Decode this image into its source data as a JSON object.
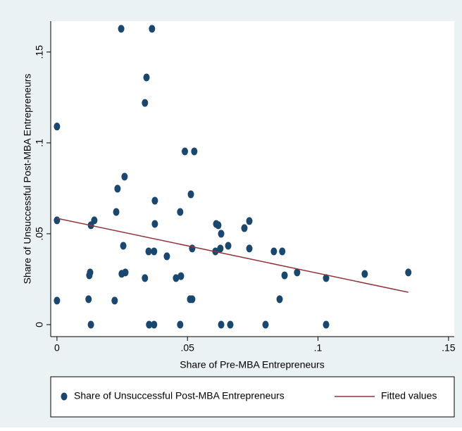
{
  "chart_data": {
    "type": "scatter",
    "xlabel": "Share of Pre-MBA Entrepreneurs",
    "ylabel": "Share of Unsuccessful Post-MBA Entrepreneurs",
    "xlim": [
      -0.0024,
      0.1522
    ],
    "ylim": [
      -0.0066,
      0.167
    ],
    "xticks": [
      {
        "value": 0,
        "label": "0"
      },
      {
        "value": 0.05,
        "label": ".05"
      },
      {
        "value": 0.1,
        "label": ".1"
      },
      {
        "value": 0.15,
        "label": ".15"
      }
    ],
    "yticks": [
      {
        "value": 0,
        "label": "0"
      },
      {
        "value": 0.05,
        "label": ".05"
      },
      {
        "value": 0.1,
        "label": ".1"
      },
      {
        "value": 0.15,
        "label": ".15"
      }
    ],
    "series": [
      {
        "name": "Share of Unsuccessful Post-MBA Entrepreneurs",
        "type": "scatter",
        "color": "#1a476f",
        "x": [
          0.0246,
          0.0364,
          0.0343,
          0.0337,
          0,
          0.049,
          0.0526,
          0.0259,
          0.0232,
          0.0513,
          0.0375,
          0.0227,
          0.0472,
          0,
          0.0143,
          0.013,
          0.0375,
          0.061,
          0.0618,
          0.0629,
          0.0737,
          0.0718,
          0.0254,
          0.0656,
          0.0518,
          0.0626,
          0.0737,
          0.0351,
          0.0372,
          0.0607,
          0.0831,
          0.0863,
          0.0421,
          0.0262,
          0.0248,
          0.0127,
          0.0124,
          0.0475,
          0.0872,
          0.092,
          0.1179,
          0.1346,
          0.0337,
          0.0456,
          0.1031,
          0,
          0.0121,
          0.0221,
          0.051,
          0.0518,
          0.0853,
          0.013,
          0.0353,
          0.0372,
          0.0472,
          0.0629,
          0.0664,
          0.0799,
          0.1031
        ],
        "values": [
          0.1628,
          0.1628,
          0.136,
          0.122,
          0.109,
          0.0953,
          0.0953,
          0.0814,
          0.0748,
          0.0717,
          0.0682,
          0.062,
          0.062,
          0.0574,
          0.0574,
          0.0547,
          0.0554,
          0.0554,
          0.0547,
          0.05,
          0.057,
          0.0531,
          0.0434,
          0.0434,
          0.0419,
          0.0419,
          0.0419,
          0.0403,
          0.0403,
          0.0403,
          0.0403,
          0.0403,
          0.0376,
          0.0287,
          0.028,
          0.0287,
          0.0271,
          0.0267,
          0.0271,
          0.0287,
          0.0279,
          0.0287,
          0.0256,
          0.0256,
          0.0256,
          0.0132,
          0.014,
          0.0132,
          0.014,
          0.014,
          0.014,
          0,
          0,
          0,
          0,
          0,
          0,
          0,
          0
        ]
      },
      {
        "name": "Fitted values",
        "type": "line",
        "color": "#90353b",
        "x": [
          0,
          0.1346
        ],
        "values": [
          0.0585,
          0.0178
        ]
      }
    ]
  }
}
